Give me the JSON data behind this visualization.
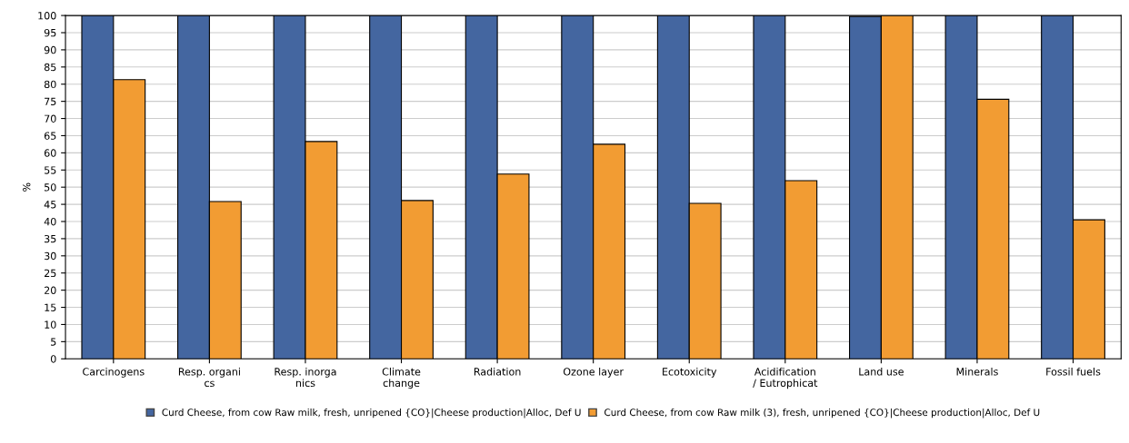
{
  "chart_data": {
    "type": "bar",
    "ylabel": "%",
    "categories": [
      "Carcinogens",
      "Resp. organi\ncs",
      "Resp. inorga\nnics",
      "Climate\nchange",
      "Radiation",
      "Ozone layer",
      "Ecotoxicity",
      "Acidification\n/ Eutrophicat",
      "Land use",
      "Minerals",
      "Fossil fuels"
    ],
    "series": [
      {
        "name": "Curd Cheese, from cow Raw milk, fresh, unripened {CO}|Cheese production|Alloc, Def U",
        "color": "#4466a0",
        "values": [
          100,
          100,
          100,
          100,
          100,
          100,
          100,
          100,
          99.7,
          100,
          100
        ]
      },
      {
        "name": "Curd Cheese, from cow Raw milk (3), fresh, unripened {CO}|Cheese production|Alloc, Def U",
        "color": "#f29c33",
        "values": [
          81.3,
          45.8,
          63.3,
          46.1,
          53.8,
          62.5,
          45.3,
          51.9,
          100,
          75.6,
          40.5
        ]
      }
    ],
    "ylim": [
      0,
      100
    ],
    "yticks": [
      0,
      5,
      10,
      15,
      20,
      25,
      30,
      35,
      40,
      45,
      50,
      55,
      60,
      65,
      70,
      75,
      80,
      85,
      90,
      95,
      100
    ],
    "grid": "y",
    "legend": "bottom"
  }
}
